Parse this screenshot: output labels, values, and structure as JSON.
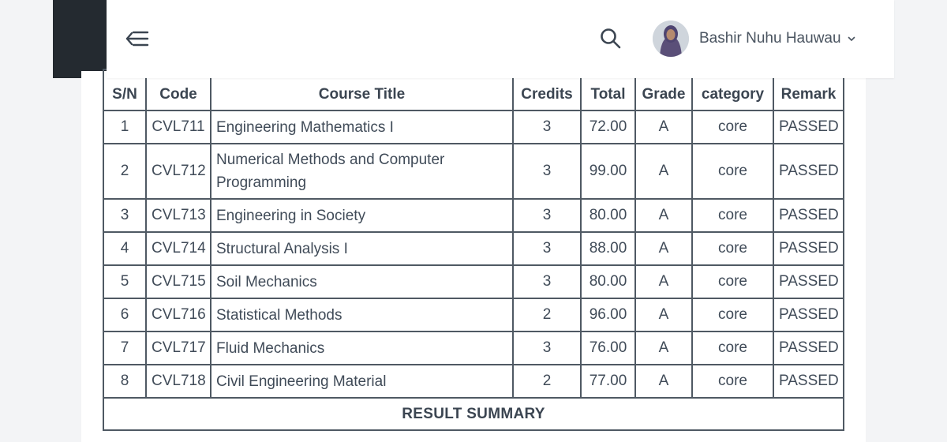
{
  "header": {
    "user_name": "Bashir Nuhu Hauwau",
    "icons": {
      "menu": "collapse-menu-icon",
      "search": "search-icon",
      "caret": "chevron-down-icon"
    }
  },
  "table": {
    "columns": [
      "S/N",
      "Code",
      "Course Title",
      "Credits",
      "Total",
      "Grade",
      "category",
      "Remark"
    ],
    "rows": [
      {
        "sn": "1",
        "code": "CVL711",
        "title": "Engineering Mathematics I",
        "credits": "3",
        "total": "72.00",
        "grade": "A",
        "category": "core",
        "remark": "PASSED"
      },
      {
        "sn": "2",
        "code": "CVL712",
        "title": "Numerical Methods and Computer Programming",
        "credits": "3",
        "total": "99.00",
        "grade": "A",
        "category": "core",
        "remark": "PASSED"
      },
      {
        "sn": "3",
        "code": "CVL713",
        "title": "Engineering in Society",
        "credits": "3",
        "total": "80.00",
        "grade": "A",
        "category": "core",
        "remark": "PASSED"
      },
      {
        "sn": "4",
        "code": "CVL714",
        "title": "Structural Analysis I",
        "credits": "3",
        "total": "88.00",
        "grade": "A",
        "category": "core",
        "remark": "PASSED"
      },
      {
        "sn": "5",
        "code": "CVL715",
        "title": "Soil Mechanics",
        "credits": "3",
        "total": "80.00",
        "grade": "A",
        "category": "core",
        "remark": "PASSED"
      },
      {
        "sn": "6",
        "code": "CVL716",
        "title": "Statistical Methods",
        "credits": "2",
        "total": "96.00",
        "grade": "A",
        "category": "core",
        "remark": "PASSED"
      },
      {
        "sn": "7",
        "code": "CVL717",
        "title": "Fluid Mechanics",
        "credits": "3",
        "total": "76.00",
        "grade": "A",
        "category": "core",
        "remark": "PASSED"
      },
      {
        "sn": "8",
        "code": "CVL718",
        "title": "Civil Engineering Material",
        "credits": "2",
        "total": "77.00",
        "grade": "A",
        "category": "core",
        "remark": "PASSED"
      }
    ],
    "summary_label": "RESULT SUMMARY"
  },
  "colors": {
    "sidebar": "#242a30",
    "border": "#4f5963",
    "text": "#404b58",
    "background": "#f3f4f6"
  }
}
